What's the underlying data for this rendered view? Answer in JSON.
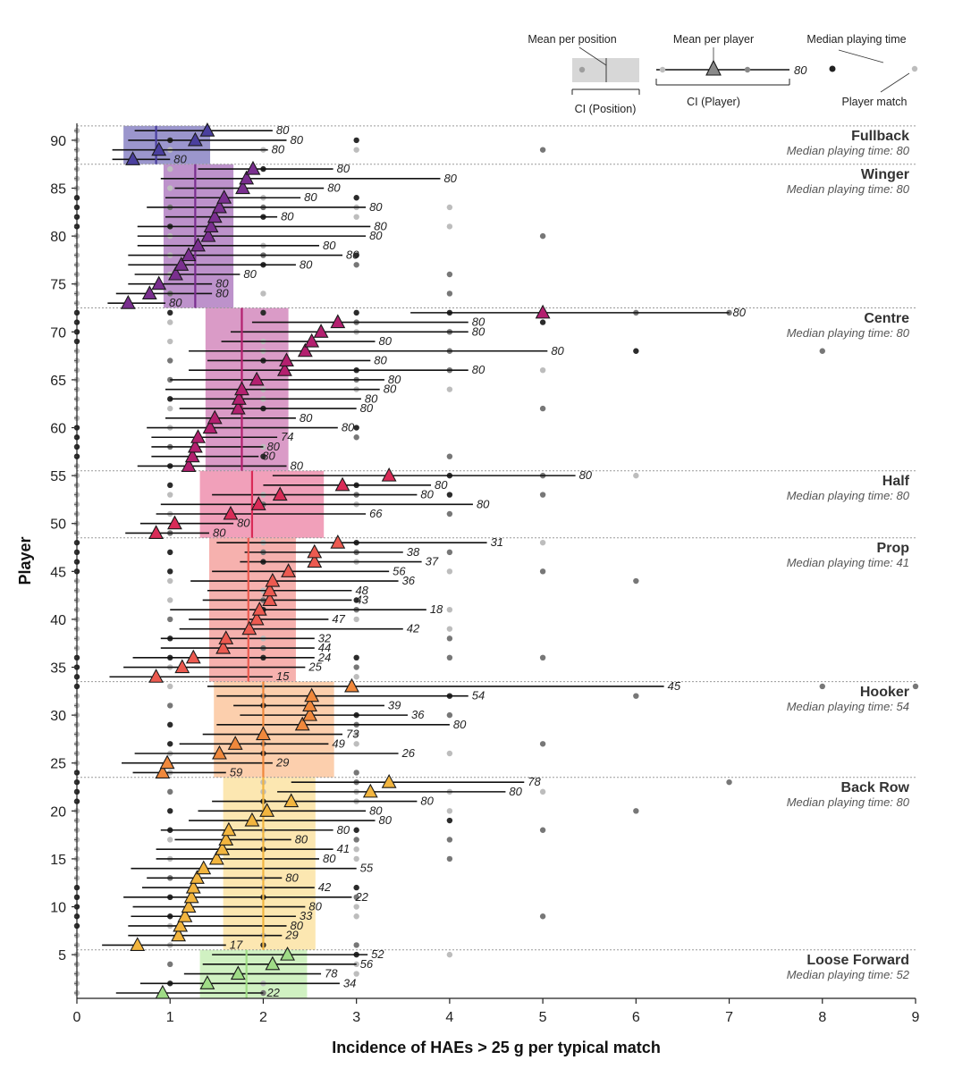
{
  "chart_data": {
    "type": "scatter",
    "xlabel": "Incidence of HAEs > 25 g per typical match",
    "ylabel": "Player",
    "xlim": [
      0,
      9
    ],
    "ylim": [
      0,
      92
    ],
    "xticks": [
      0,
      1,
      2,
      3,
      4,
      5,
      6,
      7,
      8,
      9
    ],
    "yticks": [
      5,
      10,
      15,
      20,
      25,
      30,
      35,
      40,
      45,
      50,
      55,
      60,
      65,
      70,
      75,
      80,
      85,
      90
    ],
    "legend": {
      "mean_per_position": "Mean per position",
      "mean_per_player": "Mean per player",
      "median_playing_time": "Median playing time",
      "ci_position": "CI (Position)",
      "ci_player": "CI (Player)",
      "player_match": "Player match",
      "example_time": "80"
    },
    "positions": [
      {
        "name": "Fullback",
        "subtitle": "Median playing time: 80",
        "players": [
          88,
          91
        ],
        "mean": 0.85,
        "ci": [
          0.5,
          1.43
        ],
        "color": "#4a3f9e",
        "band": "#8a84c4"
      },
      {
        "name": "Winger",
        "subtitle": "Median playing time: 80",
        "players": [
          73,
          87
        ],
        "mean": 1.27,
        "ci": [
          0.93,
          1.68
        ],
        "color": "#7a2f8f",
        "band": "#b27fc2"
      },
      {
        "name": "Centre",
        "subtitle": "Median playing time: 80",
        "players": [
          56,
          72
        ],
        "mean": 1.77,
        "ci": [
          1.38,
          2.27
        ],
        "color": "#b3206f",
        "band": "#d489bd"
      },
      {
        "name": "Half",
        "subtitle": "Median playing time: 80",
        "players": [
          49,
          55
        ],
        "mean": 1.88,
        "ci": [
          1.32,
          2.65
        ],
        "color": "#d92b57",
        "band": "#ee8fae"
      },
      {
        "name": "Prop",
        "subtitle": "Median playing time: 41",
        "players": [
          34,
          48
        ],
        "mean": 1.84,
        "ci": [
          1.42,
          2.35
        ],
        "color": "#ec5a50",
        "band": "#f5a3a0"
      },
      {
        "name": "Hooker",
        "subtitle": "Median playing time: 54",
        "players": [
          24,
          33
        ],
        "mean": 2.0,
        "ci": [
          1.47,
          2.76
        ],
        "color": "#f0883c",
        "band": "#fbc79f"
      },
      {
        "name": "Back Row",
        "subtitle": "Median playing time: 80",
        "players": [
          6,
          23
        ],
        "mean": 2.0,
        "ci": [
          1.57,
          2.56
        ],
        "color": "#f2b53f",
        "band": "#fbe3a3"
      },
      {
        "name": "Loose Forward",
        "subtitle": "Median playing time: 52",
        "players": [
          1,
          5
        ],
        "mean": 1.82,
        "ci": [
          1.32,
          2.47
        ],
        "color": "#9fdc86",
        "band": "#c8eeb7"
      }
    ],
    "players": [
      {
        "id": 1,
        "mean": 0.92,
        "ci": [
          0.42,
          2.0
        ],
        "time": "22"
      },
      {
        "id": 2,
        "mean": 1.4,
        "ci": [
          0.68,
          2.82
        ],
        "time": "34"
      },
      {
        "id": 3,
        "mean": 1.73,
        "ci": [
          1.15,
          2.62
        ],
        "time": "78"
      },
      {
        "id": 4,
        "mean": 2.1,
        "ci": [
          1.35,
          3.0
        ],
        "time": "56"
      },
      {
        "id": 5,
        "mean": 2.26,
        "ci": [
          1.45,
          3.12
        ],
        "time": "52"
      },
      {
        "id": 6,
        "mean": 0.65,
        "ci": [
          0.27,
          1.6
        ],
        "time": "17"
      },
      {
        "id": 7,
        "mean": 1.09,
        "ci": [
          0.55,
          2.2
        ],
        "time": "29"
      },
      {
        "id": 8,
        "mean": 1.11,
        "ci": [
          0.55,
          2.25
        ],
        "time": "80"
      },
      {
        "id": 9,
        "mean": 1.16,
        "ci": [
          0.58,
          2.35
        ],
        "time": "33"
      },
      {
        "id": 10,
        "mean": 1.2,
        "ci": [
          0.6,
          2.45
        ],
        "time": "80"
      },
      {
        "id": 11,
        "mean": 1.23,
        "ci": [
          0.5,
          2.95
        ],
        "time": "22"
      },
      {
        "id": 12,
        "mean": 1.25,
        "ci": [
          0.7,
          2.55
        ],
        "time": "42"
      },
      {
        "id": 13,
        "mean": 1.29,
        "ci": [
          0.75,
          2.2
        ],
        "time": "80"
      },
      {
        "id": 14,
        "mean": 1.36,
        "ci": [
          0.58,
          3.0
        ],
        "time": "55"
      },
      {
        "id": 15,
        "mean": 1.5,
        "ci": [
          0.85,
          2.6
        ],
        "time": "80"
      },
      {
        "id": 16,
        "mean": 1.56,
        "ci": [
          0.85,
          2.75
        ],
        "time": "41"
      },
      {
        "id": 17,
        "mean": 1.6,
        "ci": [
          1.05,
          2.3
        ],
        "time": "80"
      },
      {
        "id": 18,
        "mean": 1.63,
        "ci": [
          0.9,
          2.75
        ],
        "time": "80"
      },
      {
        "id": 19,
        "mean": 1.88,
        "ci": [
          1.2,
          3.2
        ],
        "time": "80"
      },
      {
        "id": 20,
        "mean": 2.04,
        "ci": [
          1.3,
          3.1
        ],
        "time": "80"
      },
      {
        "id": 21,
        "mean": 2.3,
        "ci": [
          1.45,
          3.65
        ],
        "time": "80"
      },
      {
        "id": 22,
        "mean": 3.15,
        "ci": [
          2.15,
          4.6
        ],
        "time": "80"
      },
      {
        "id": 23,
        "mean": 3.35,
        "ci": [
          2.3,
          4.8
        ],
        "time": "78"
      },
      {
        "id": 24,
        "mean": 0.92,
        "ci": [
          0.6,
          1.6
        ],
        "time": "59"
      },
      {
        "id": 25,
        "mean": 0.97,
        "ci": [
          0.48,
          2.1
        ],
        "time": "29"
      },
      {
        "id": 26,
        "mean": 1.53,
        "ci": [
          0.62,
          3.45
        ],
        "time": "26"
      },
      {
        "id": 27,
        "mean": 1.7,
        "ci": [
          1.1,
          2.7
        ],
        "time": "49"
      },
      {
        "id": 28,
        "mean": 2.0,
        "ci": [
          1.35,
          2.85
        ],
        "time": "73"
      },
      {
        "id": 29,
        "mean": 2.42,
        "ci": [
          1.5,
          4.0
        ],
        "time": "80"
      },
      {
        "id": 30,
        "mean": 2.5,
        "ci": [
          1.75,
          3.55
        ],
        "time": "36"
      },
      {
        "id": 31,
        "mean": 2.5,
        "ci": [
          1.68,
          3.3
        ],
        "time": "39"
      },
      {
        "id": 32,
        "mean": 2.52,
        "ci": [
          1.5,
          4.2
        ],
        "time": "54"
      },
      {
        "id": 33,
        "mean": 2.95,
        "ci": [
          1.4,
          6.3
        ],
        "time": "45"
      },
      {
        "id": 34,
        "mean": 0.85,
        "ci": [
          0.35,
          2.1
        ],
        "time": "15"
      },
      {
        "id": 35,
        "mean": 1.13,
        "ci": [
          0.5,
          2.45
        ],
        "time": "25"
      },
      {
        "id": 36,
        "mean": 1.25,
        "ci": [
          0.6,
          2.55
        ],
        "time": "24"
      },
      {
        "id": 37,
        "mean": 1.57,
        "ci": [
          0.9,
          2.55
        ],
        "time": "44"
      },
      {
        "id": 38,
        "mean": 1.6,
        "ci": [
          0.9,
          2.55
        ],
        "time": "32"
      },
      {
        "id": 39,
        "mean": 1.85,
        "ci": [
          1.1,
          3.5
        ],
        "time": "42"
      },
      {
        "id": 40,
        "mean": 1.93,
        "ci": [
          1.2,
          2.7
        ],
        "time": "47"
      },
      {
        "id": 41,
        "mean": 1.96,
        "ci": [
          1.0,
          3.75
        ],
        "time": "18"
      },
      {
        "id": 42,
        "mean": 2.07,
        "ci": [
          1.35,
          2.95
        ],
        "time": "43"
      },
      {
        "id": 43,
        "mean": 2.07,
        "ci": [
          1.4,
          2.95
        ],
        "time": "48"
      },
      {
        "id": 44,
        "mean": 2.1,
        "ci": [
          1.22,
          3.45
        ],
        "time": "36"
      },
      {
        "id": 45,
        "mean": 2.27,
        "ci": [
          1.45,
          3.35
        ],
        "time": "56"
      },
      {
        "id": 46,
        "mean": 2.55,
        "ci": [
          1.75,
          3.7
        ],
        "time": "37"
      },
      {
        "id": 47,
        "mean": 2.55,
        "ci": [
          1.8,
          3.5
        ],
        "time": "38"
      },
      {
        "id": 48,
        "mean": 2.8,
        "ci": [
          1.5,
          4.4
        ],
        "time": "31"
      },
      {
        "id": 49,
        "mean": 0.85,
        "ci": [
          0.52,
          1.42
        ],
        "time": "80"
      },
      {
        "id": 50,
        "mean": 1.05,
        "ci": [
          0.68,
          1.68
        ],
        "time": "80"
      },
      {
        "id": 51,
        "mean": 1.65,
        "ci": [
          0.85,
          3.1
        ],
        "time": "66"
      },
      {
        "id": 52,
        "mean": 1.95,
        "ci": [
          0.9,
          4.25
        ],
        "time": "80"
      },
      {
        "id": 53,
        "mean": 2.18,
        "ci": [
          1.45,
          3.65
        ],
        "time": "80"
      },
      {
        "id": 54,
        "mean": 2.85,
        "ci": [
          2.0,
          3.8
        ],
        "time": "80"
      },
      {
        "id": 55,
        "mean": 3.35,
        "ci": [
          2.1,
          5.35
        ],
        "time": "80"
      },
      {
        "id": 56,
        "mean": 1.2,
        "ci": [
          0.65,
          2.25
        ],
        "time": "80"
      },
      {
        "id": 57,
        "mean": 1.24,
        "ci": [
          0.8,
          1.95
        ],
        "time": "80"
      },
      {
        "id": 58,
        "mean": 1.27,
        "ci": [
          0.8,
          2.0
        ],
        "time": "80"
      },
      {
        "id": 59,
        "mean": 1.3,
        "ci": [
          0.8,
          2.15
        ],
        "time": "74"
      },
      {
        "id": 60,
        "mean": 1.43,
        "ci": [
          0.75,
          2.8
        ],
        "time": "80"
      },
      {
        "id": 61,
        "mean": 1.48,
        "ci": [
          0.95,
          2.35
        ],
        "time": "80"
      },
      {
        "id": 62,
        "mean": 1.73,
        "ci": [
          1.1,
          3.0
        ],
        "time": "80"
      },
      {
        "id": 63,
        "mean": 1.74,
        "ci": [
          1.0,
          3.05
        ],
        "time": "80"
      },
      {
        "id": 64,
        "mean": 1.77,
        "ci": [
          0.95,
          3.25
        ],
        "time": "80"
      },
      {
        "id": 65,
        "mean": 1.93,
        "ci": [
          1.0,
          3.3
        ],
        "time": "80"
      },
      {
        "id": 66,
        "mean": 2.23,
        "ci": [
          1.2,
          4.2
        ],
        "time": "80"
      },
      {
        "id": 67,
        "mean": 2.25,
        "ci": [
          1.4,
          3.15
        ],
        "time": "80"
      },
      {
        "id": 68,
        "mean": 2.45,
        "ci": [
          1.2,
          5.05
        ],
        "time": "80"
      },
      {
        "id": 69,
        "mean": 2.52,
        "ci": [
          1.55,
          3.2
        ],
        "time": "80"
      },
      {
        "id": 70,
        "mean": 2.62,
        "ci": [
          1.65,
          4.2
        ],
        "time": "80"
      },
      {
        "id": 71,
        "mean": 2.8,
        "ci": [
          1.88,
          4.2
        ],
        "time": "80"
      },
      {
        "id": 72,
        "mean": 5.0,
        "ci": [
          3.58,
          7.0
        ],
        "time": "80"
      },
      {
        "id": 73,
        "mean": 0.55,
        "ci": [
          0.33,
          0.95
        ],
        "time": "80"
      },
      {
        "id": 74,
        "mean": 0.78,
        "ci": [
          0.42,
          1.45
        ],
        "time": "80"
      },
      {
        "id": 75,
        "mean": 0.88,
        "ci": [
          0.55,
          1.45
        ],
        "time": "80"
      },
      {
        "id": 76,
        "mean": 1.06,
        "ci": [
          0.62,
          1.75
        ],
        "time": "80"
      },
      {
        "id": 77,
        "mean": 1.12,
        "ci": [
          0.55,
          2.35
        ],
        "time": "80"
      },
      {
        "id": 78,
        "mean": 1.2,
        "ci": [
          0.55,
          2.85
        ],
        "time": "80"
      },
      {
        "id": 79,
        "mean": 1.3,
        "ci": [
          0.65,
          2.6
        ],
        "time": "80"
      },
      {
        "id": 80,
        "mean": 1.41,
        "ci": [
          0.65,
          3.1
        ],
        "time": "80"
      },
      {
        "id": 81,
        "mean": 1.44,
        "ci": [
          0.65,
          3.15
        ],
        "time": "80"
      },
      {
        "id": 82,
        "mean": 1.48,
        "ci": [
          0.95,
          2.15
        ],
        "time": "80"
      },
      {
        "id": 83,
        "mean": 1.53,
        "ci": [
          0.75,
          3.1
        ],
        "time": "80"
      },
      {
        "id": 84,
        "mean": 1.58,
        "ci": [
          0.95,
          2.4
        ],
        "time": "80"
      },
      {
        "id": 85,
        "mean": 1.78,
        "ci": [
          1.05,
          2.65
        ],
        "time": "80"
      },
      {
        "id": 86,
        "mean": 1.82,
        "ci": [
          0.9,
          3.9
        ],
        "time": "80"
      },
      {
        "id": 87,
        "mean": 1.89,
        "ci": [
          1.3,
          2.75
        ],
        "time": "80"
      },
      {
        "id": 88,
        "mean": 0.6,
        "ci": [
          0.38,
          1.0
        ],
        "time": "80"
      },
      {
        "id": 89,
        "mean": 0.88,
        "ci": [
          0.38,
          2.05
        ],
        "time": "80"
      },
      {
        "id": 90,
        "mean": 1.27,
        "ci": [
          0.55,
          2.25
        ],
        "time": "80"
      },
      {
        "id": 91,
        "mean": 1.4,
        "ci": [
          0.62,
          2.1
        ],
        "time": "80"
      }
    ]
  }
}
